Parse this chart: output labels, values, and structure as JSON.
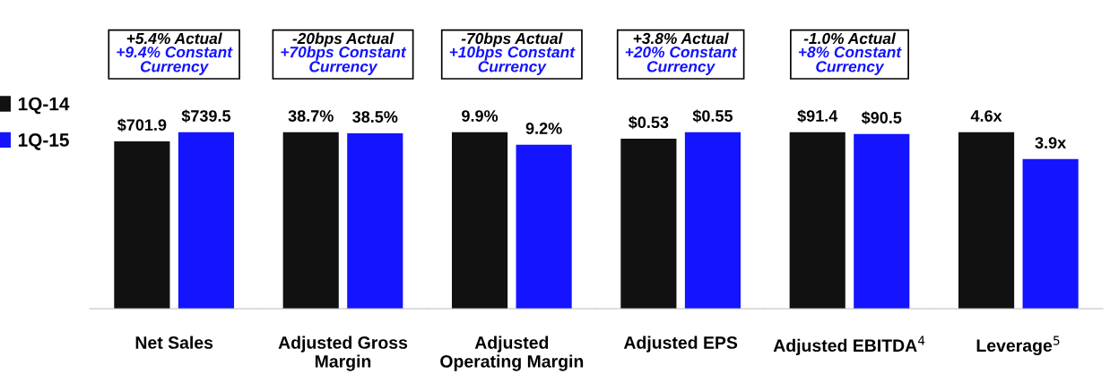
{
  "chart_data": [
    {
      "type": "bar",
      "categories": [
        "Net Sales"
      ],
      "legend": "left",
      "series": [
        {
          "name": "1Q-14",
          "color": "#111111",
          "values": [
            701.9
          ],
          "value_labels": [
            "$701.9"
          ]
        },
        {
          "name": "1Q-15",
          "color": "#1414ff",
          "values": [
            739.5
          ],
          "value_labels": [
            "$739.5"
          ]
        }
      ],
      "annotations": [
        "+5.4% Actual",
        "+9.4% Constant\nCurrency"
      ]
    },
    {
      "type": "bar",
      "categories": [
        "Adjusted Gross\nMargin"
      ],
      "grid": false,
      "series": [
        {
          "color": "#111111",
          "values": [
            38.7
          ],
          "value_labels": [
            "38.7%"
          ]
        },
        {
          "color": "#1414ff",
          "values": [
            38.5
          ],
          "value_labels": [
            "38.5%"
          ]
        }
      ],
      "annotations": [
        "-20bps Actual",
        "+70bps Constant\nCurrency"
      ]
    },
    {
      "type": "bar",
      "categories": [
        "Adjusted\nOperating Margin"
      ],
      "grid": false,
      "series": [
        {
          "color": "#111111",
          "values": [
            9.9
          ],
          "value_labels": [
            "9.9%"
          ]
        },
        {
          "color": "#1414ff",
          "values": [
            9.2
          ],
          "value_labels": [
            "9.2%"
          ]
        }
      ],
      "annotations": [
        "-70bps Actual",
        "+10bps Constant\nCurrency"
      ]
    },
    {
      "type": "bar",
      "categories": [
        "Adjusted EPS"
      ],
      "grid": false,
      "series": [
        {
          "color": "#111111",
          "values": [
            0.53
          ],
          "value_labels": [
            "$0.53"
          ]
        },
        {
          "color": "#1414ff",
          "values": [
            0.55
          ],
          "value_labels": [
            "$0.55"
          ]
        }
      ],
      "annotations": [
        "+3.8% Actual",
        "+20% Constant\nCurrency"
      ]
    },
    {
      "type": "bar",
      "categories": [
        "Adjusted EBITDA$^{4}$"
      ],
      "grid": false,
      "series": [
        {
          "color": "#111111",
          "values": [
            91.4
          ],
          "value_labels": [
            "$91.4"
          ]
        },
        {
          "color": "#1414ff",
          "values": [
            90.5
          ],
          "value_labels": [
            "$90.5"
          ]
        }
      ],
      "annotations": [
        "-1.0% Actual",
        "+8% Constant\nCurrency"
      ]
    },
    {
      "type": "bar",
      "categories": [
        "Leverage$^{5}$"
      ],
      "grid": false,
      "series": [
        {
          "color": "#111111",
          "values": [
            4.6
          ],
          "value_labels": [
            "4.6x"
          ]
        },
        {
          "color": "#1414ff",
          "values": [
            3.9
          ],
          "value_labels": [
            "3.9x"
          ]
        }
      ]
    }
  ]
}
